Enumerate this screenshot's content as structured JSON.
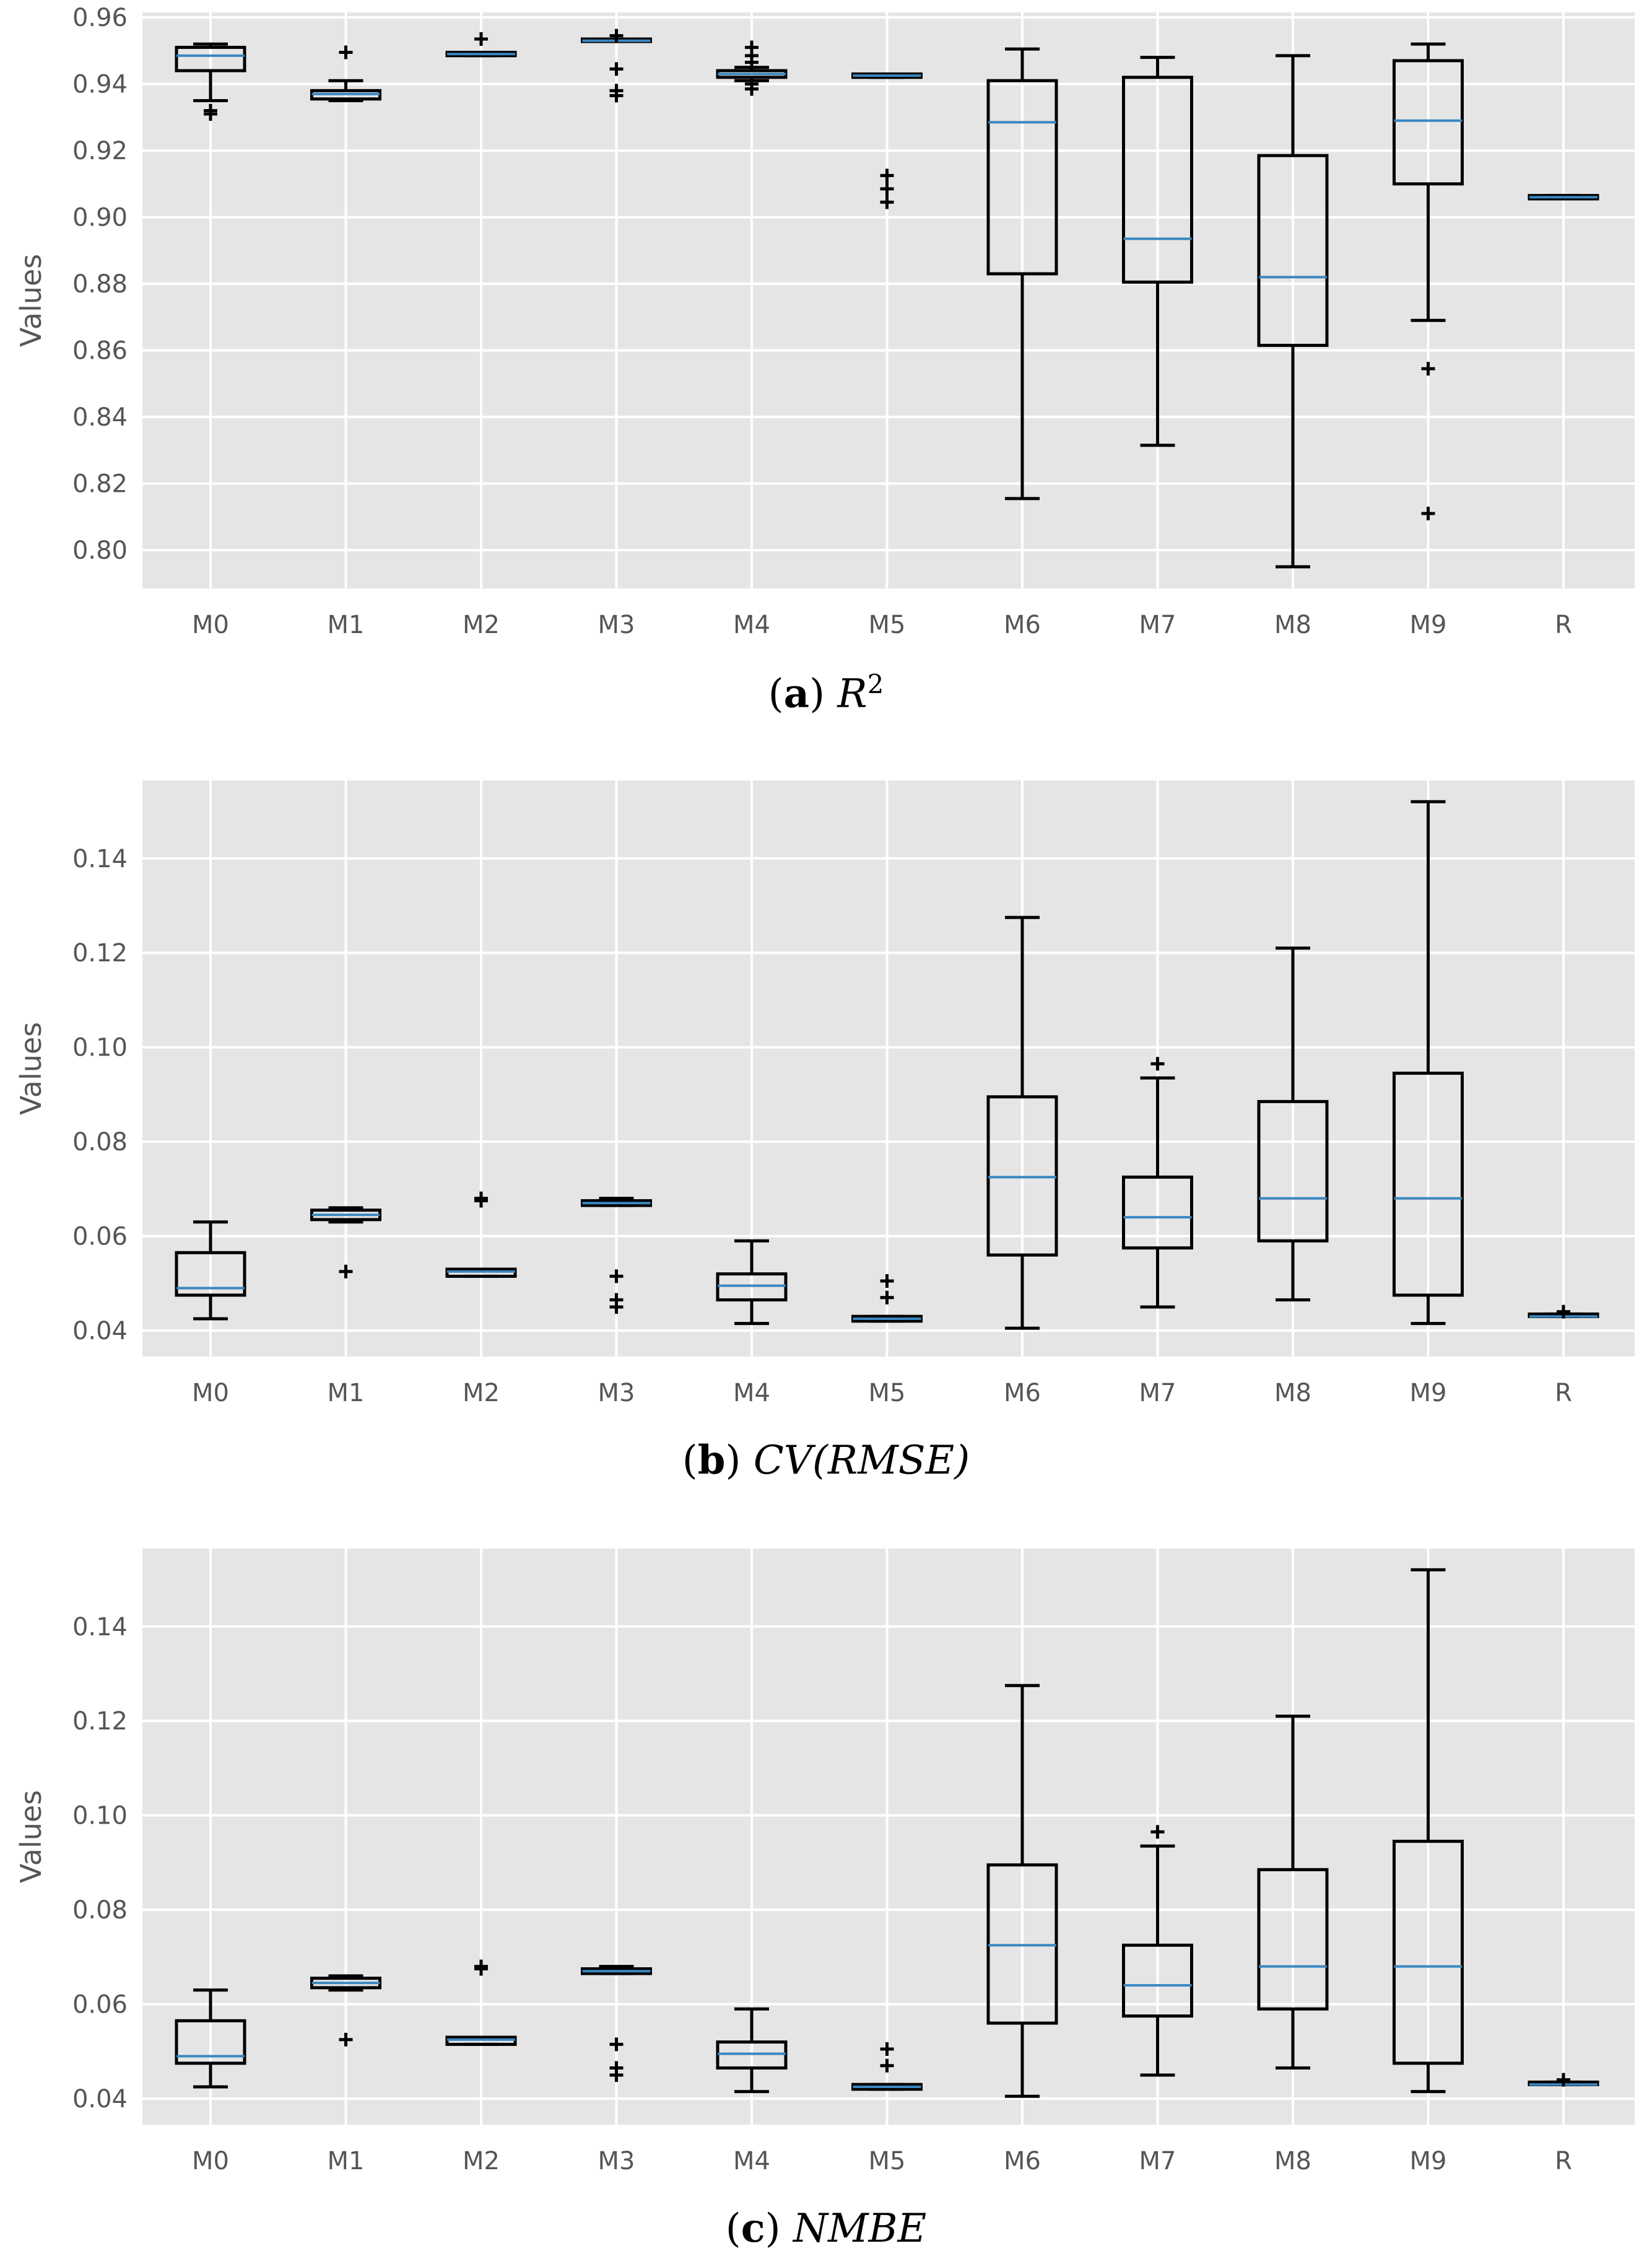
{
  "chart_data": [
    {
      "type": "box",
      "panel_label": "a",
      "metric": "R",
      "metric_sup": "2",
      "ylabel": "Values",
      "ylim": [
        0.7885,
        0.9615
      ],
      "yticks": [
        "0.80",
        "0.82",
        "0.84",
        "0.86",
        "0.88",
        "0.90",
        "0.92",
        "0.94",
        "0.96"
      ],
      "categories": [
        "M0",
        "M1",
        "M2",
        "M3",
        "M4",
        "M5",
        "M6",
        "M7",
        "M8",
        "M9",
        "R"
      ],
      "boxes": [
        {
          "q1": 0.944,
          "median": 0.9485,
          "q3": 0.951,
          "whislo": 0.935,
          "whishi": 0.952,
          "fliers": [
            0.932,
            0.931
          ]
        },
        {
          "q1": 0.9355,
          "median": 0.937,
          "q3": 0.938,
          "whislo": 0.935,
          "whishi": 0.941,
          "fliers": [
            0.9495
          ]
        },
        {
          "q1": 0.9485,
          "median": 0.949,
          "q3": 0.9495,
          "whislo": 0.9485,
          "whishi": 0.9495,
          "fliers": [
            0.9535
          ]
        },
        {
          "q1": 0.953,
          "median": 0.953,
          "q3": 0.9535,
          "whislo": 0.953,
          "whishi": 0.9535,
          "fliers": [
            0.9545,
            0.9445,
            0.938,
            0.9365
          ]
        },
        {
          "q1": 0.942,
          "median": 0.943,
          "q3": 0.944,
          "whislo": 0.941,
          "whishi": 0.945,
          "fliers": [
            0.951,
            0.9485,
            0.9465,
            0.94,
            0.9385
          ]
        },
        {
          "q1": 0.942,
          "median": 0.9425,
          "q3": 0.943,
          "whislo": 0.942,
          "whishi": 0.943,
          "fliers": [
            0.9125,
            0.9085,
            0.9045
          ]
        },
        {
          "q1": 0.883,
          "median": 0.9285,
          "q3": 0.941,
          "whislo": 0.8155,
          "whishi": 0.9505,
          "fliers": []
        },
        {
          "q1": 0.8805,
          "median": 0.8935,
          "q3": 0.942,
          "whislo": 0.8315,
          "whishi": 0.948,
          "fliers": []
        },
        {
          "q1": 0.8615,
          "median": 0.882,
          "q3": 0.9185,
          "whislo": 0.795,
          "whishi": 0.9485,
          "fliers": []
        },
        {
          "q1": 0.91,
          "median": 0.929,
          "q3": 0.947,
          "whislo": 0.869,
          "whishi": 0.952,
          "fliers": [
            0.8545,
            0.811
          ]
        },
        {
          "q1": 0.9055,
          "median": 0.906,
          "q3": 0.9065,
          "whislo": 0.9055,
          "whishi": 0.9065,
          "fliers": []
        }
      ]
    },
    {
      "type": "box",
      "panel_label": "b",
      "metric": "CV(RMSE)",
      "ylabel": "Values",
      "ylim": [
        0.0345,
        0.1565
      ],
      "yticks": [
        "0.04",
        "0.06",
        "0.08",
        "0.10",
        "0.12",
        "0.14"
      ],
      "categories": [
        "M0",
        "M1",
        "M2",
        "M3",
        "M4",
        "M5",
        "M6",
        "M7",
        "M8",
        "M9",
        "R"
      ],
      "boxes": [
        {
          "q1": 0.0475,
          "median": 0.049,
          "q3": 0.0565,
          "whislo": 0.0425,
          "whishi": 0.063,
          "fliers": []
        },
        {
          "q1": 0.0635,
          "median": 0.0645,
          "q3": 0.0655,
          "whislo": 0.063,
          "whishi": 0.066,
          "fliers": [
            0.0525
          ]
        },
        {
          "q1": 0.0515,
          "median": 0.0525,
          "q3": 0.053,
          "whislo": 0.0515,
          "whishi": 0.053,
          "fliers": [
            0.068,
            0.0675
          ]
        },
        {
          "q1": 0.0665,
          "median": 0.067,
          "q3": 0.0675,
          "whislo": 0.0665,
          "whishi": 0.068,
          "fliers": [
            0.0515,
            0.0465,
            0.045
          ]
        },
        {
          "q1": 0.0465,
          "median": 0.0495,
          "q3": 0.052,
          "whislo": 0.0415,
          "whishi": 0.059,
          "fliers": []
        },
        {
          "q1": 0.042,
          "median": 0.0425,
          "q3": 0.043,
          "whislo": 0.042,
          "whishi": 0.043,
          "fliers": [
            0.0505,
            0.047
          ]
        },
        {
          "q1": 0.056,
          "median": 0.0725,
          "q3": 0.0895,
          "whislo": 0.0405,
          "whishi": 0.1275,
          "fliers": []
        },
        {
          "q1": 0.0575,
          "median": 0.064,
          "q3": 0.0725,
          "whislo": 0.045,
          "whishi": 0.0935,
          "fliers": [
            0.0965
          ]
        },
        {
          "q1": 0.059,
          "median": 0.068,
          "q3": 0.0885,
          "whislo": 0.0465,
          "whishi": 0.121,
          "fliers": []
        },
        {
          "q1": 0.0475,
          "median": 0.068,
          "q3": 0.0945,
          "whislo": 0.0415,
          "whishi": 0.152,
          "fliers": []
        },
        {
          "q1": 0.043,
          "median": 0.043,
          "q3": 0.0435,
          "whislo": 0.043,
          "whishi": 0.0435,
          "fliers": [
            0.044
          ]
        }
      ]
    },
    {
      "type": "box",
      "panel_label": "c",
      "metric": "NMBE",
      "ylabel": "Values",
      "ylim": [
        0.0345,
        0.1565
      ],
      "yticks": [
        "0.04",
        "0.06",
        "0.08",
        "0.10",
        "0.12",
        "0.14"
      ],
      "categories": [
        "M0",
        "M1",
        "M2",
        "M3",
        "M4",
        "M5",
        "M6",
        "M7",
        "M8",
        "M9",
        "R"
      ],
      "boxes": [
        {
          "q1": 0.0475,
          "median": 0.049,
          "q3": 0.0565,
          "whislo": 0.0425,
          "whishi": 0.063,
          "fliers": []
        },
        {
          "q1": 0.0635,
          "median": 0.0645,
          "q3": 0.0655,
          "whislo": 0.063,
          "whishi": 0.066,
          "fliers": [
            0.0525
          ]
        },
        {
          "q1": 0.0515,
          "median": 0.0525,
          "q3": 0.053,
          "whislo": 0.0515,
          "whishi": 0.053,
          "fliers": [
            0.068,
            0.0675
          ]
        },
        {
          "q1": 0.0665,
          "median": 0.067,
          "q3": 0.0675,
          "whislo": 0.0665,
          "whishi": 0.068,
          "fliers": [
            0.0515,
            0.0465,
            0.045
          ]
        },
        {
          "q1": 0.0465,
          "median": 0.0495,
          "q3": 0.052,
          "whislo": 0.0415,
          "whishi": 0.059,
          "fliers": []
        },
        {
          "q1": 0.042,
          "median": 0.0425,
          "q3": 0.043,
          "whislo": 0.042,
          "whishi": 0.043,
          "fliers": [
            0.0505,
            0.047
          ]
        },
        {
          "q1": 0.056,
          "median": 0.0725,
          "q3": 0.0895,
          "whislo": 0.0405,
          "whishi": 0.1275,
          "fliers": []
        },
        {
          "q1": 0.0575,
          "median": 0.064,
          "q3": 0.0725,
          "whislo": 0.045,
          "whishi": 0.0935,
          "fliers": [
            0.0965
          ]
        },
        {
          "q1": 0.059,
          "median": 0.068,
          "q3": 0.0885,
          "whislo": 0.0465,
          "whishi": 0.121,
          "fliers": []
        },
        {
          "q1": 0.0475,
          "median": 0.068,
          "q3": 0.0945,
          "whislo": 0.0415,
          "whishi": 0.152,
          "fliers": []
        },
        {
          "q1": 0.043,
          "median": 0.043,
          "q3": 0.0435,
          "whislo": 0.043,
          "whishi": 0.0435,
          "fliers": [
            0.044
          ]
        }
      ]
    }
  ],
  "colors": {
    "plot_background": "#e5e5e5",
    "grid": "#ffffff",
    "box": "#000000",
    "median": "#3a87c0",
    "tick_text": "#555555"
  }
}
